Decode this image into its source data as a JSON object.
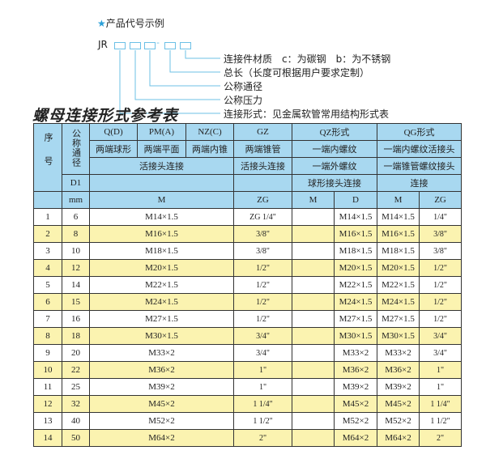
{
  "code_example": {
    "title": "产品代号示例",
    "prefix": "JR",
    "separator": "-",
    "labels": [
      "连接件材质　c：为碳钢　b：为不锈钢",
      "总长（长度可根据用户要求定制）",
      "公称通径",
      "公称压力",
      "连接形式：见金属软管常用结构形式表"
    ]
  },
  "reference_title": "螺母连接形式参考表",
  "colors": {
    "header": "#a8d8f0",
    "stripe": "#fbf3b0",
    "accent": "#2aa0d8"
  },
  "header": {
    "seq": "序号",
    "dn": "公称通径",
    "d1": "D1",
    "mm": "mm",
    "q": "Q(D)",
    "pm": "PM(A)",
    "nz": "NZ(C)",
    "gz": "GZ",
    "qz": "QZ形式",
    "qg": "QG形式",
    "q_desc": "两端球形",
    "pm_desc": "两端平面",
    "nz_desc": "两端内锥",
    "gz_desc": "两端锥管",
    "qz_desc": "一端内螺纹",
    "qg_desc": "一端内螺纹活接头",
    "union": "活接头连接",
    "gz_union": "活接头连接",
    "qz_desc2": "一端外螺纹",
    "qg_desc2": "一端锥管螺纹接头",
    "qz_desc3": "球形接头连接",
    "qg_desc3": "连接",
    "m": "M",
    "zg": "ZG",
    "qz_m": "M",
    "qz_d": "D",
    "qg_m": "M",
    "qg_zg": "ZG"
  },
  "rows": [
    {
      "no": "1",
      "dn": "6",
      "m": "M14×1.5",
      "zg": "ZG 1/4\"",
      "qz_m": "",
      "qz_d": "M14×1.5",
      "qg_m": "M14×1.5",
      "qg_zg": "1/4\""
    },
    {
      "no": "2",
      "dn": "8",
      "m": "M16×1.5",
      "zg": "3/8\"",
      "qz_m": "",
      "qz_d": "M16×1.5",
      "qg_m": "M16×1.5",
      "qg_zg": "3/8\""
    },
    {
      "no": "3",
      "dn": "10",
      "m": "M18×1.5",
      "zg": "3/8\"",
      "qz_m": "",
      "qz_d": "M18×1.5",
      "qg_m": "M18×1.5",
      "qg_zg": "3/8\""
    },
    {
      "no": "4",
      "dn": "12",
      "m": "M20×1.5",
      "zg": "1/2\"",
      "qz_m": "",
      "qz_d": "M20×1.5",
      "qg_m": "M20×1.5",
      "qg_zg": "1/2\""
    },
    {
      "no": "5",
      "dn": "14",
      "m": "M22×1.5",
      "zg": "1/2\"",
      "qz_m": "",
      "qz_d": "M22×1.5",
      "qg_m": "M22×1.5",
      "qg_zg": "1/2\""
    },
    {
      "no": "6",
      "dn": "15",
      "m": "M24×1.5",
      "zg": "1/2\"",
      "qz_m": "",
      "qz_d": "M24×1.5",
      "qg_m": "M24×1.5",
      "qg_zg": "1/2\""
    },
    {
      "no": "7",
      "dn": "16",
      "m": "M27×1.5",
      "zg": "1/2\"",
      "qz_m": "",
      "qz_d": "M27×1.5",
      "qg_m": "M27×1.5",
      "qg_zg": "1/2\""
    },
    {
      "no": "8",
      "dn": "18",
      "m": "M30×1.5",
      "zg": "3/4\"",
      "qz_m": "",
      "qz_d": "M30×1.5",
      "qg_m": "M30×1.5",
      "qg_zg": "3/4\""
    },
    {
      "no": "9",
      "dn": "20",
      "m": "M33×2",
      "zg": "3/4\"",
      "qz_m": "",
      "qz_d": "M33×2",
      "qg_m": "M33×2",
      "qg_zg": "3/4\""
    },
    {
      "no": "10",
      "dn": "22",
      "m": "M36×2",
      "zg": "1\"",
      "qz_m": "",
      "qz_d": "M36×2",
      "qg_m": "M36×2",
      "qg_zg": "1\""
    },
    {
      "no": "11",
      "dn": "25",
      "m": "M39×2",
      "zg": "1\"",
      "qz_m": "",
      "qz_d": "M39×2",
      "qg_m": "M39×2",
      "qg_zg": "1\""
    },
    {
      "no": "12",
      "dn": "32",
      "m": "M45×2",
      "zg": "1 1/4\"",
      "qz_m": "",
      "qz_d": "M45×2",
      "qg_m": "M45×2",
      "qg_zg": "1 1/4\""
    },
    {
      "no": "13",
      "dn": "40",
      "m": "M52×2",
      "zg": "1 1/2\"",
      "qz_m": "",
      "qz_d": "M52×2",
      "qg_m": "M52×2",
      "qg_zg": "1 1/2\""
    },
    {
      "no": "14",
      "dn": "50",
      "m": "M64×2",
      "zg": "2\"",
      "qz_m": "",
      "qz_d": "M64×2",
      "qg_m": "M64×2",
      "qg_zg": "2\""
    }
  ]
}
